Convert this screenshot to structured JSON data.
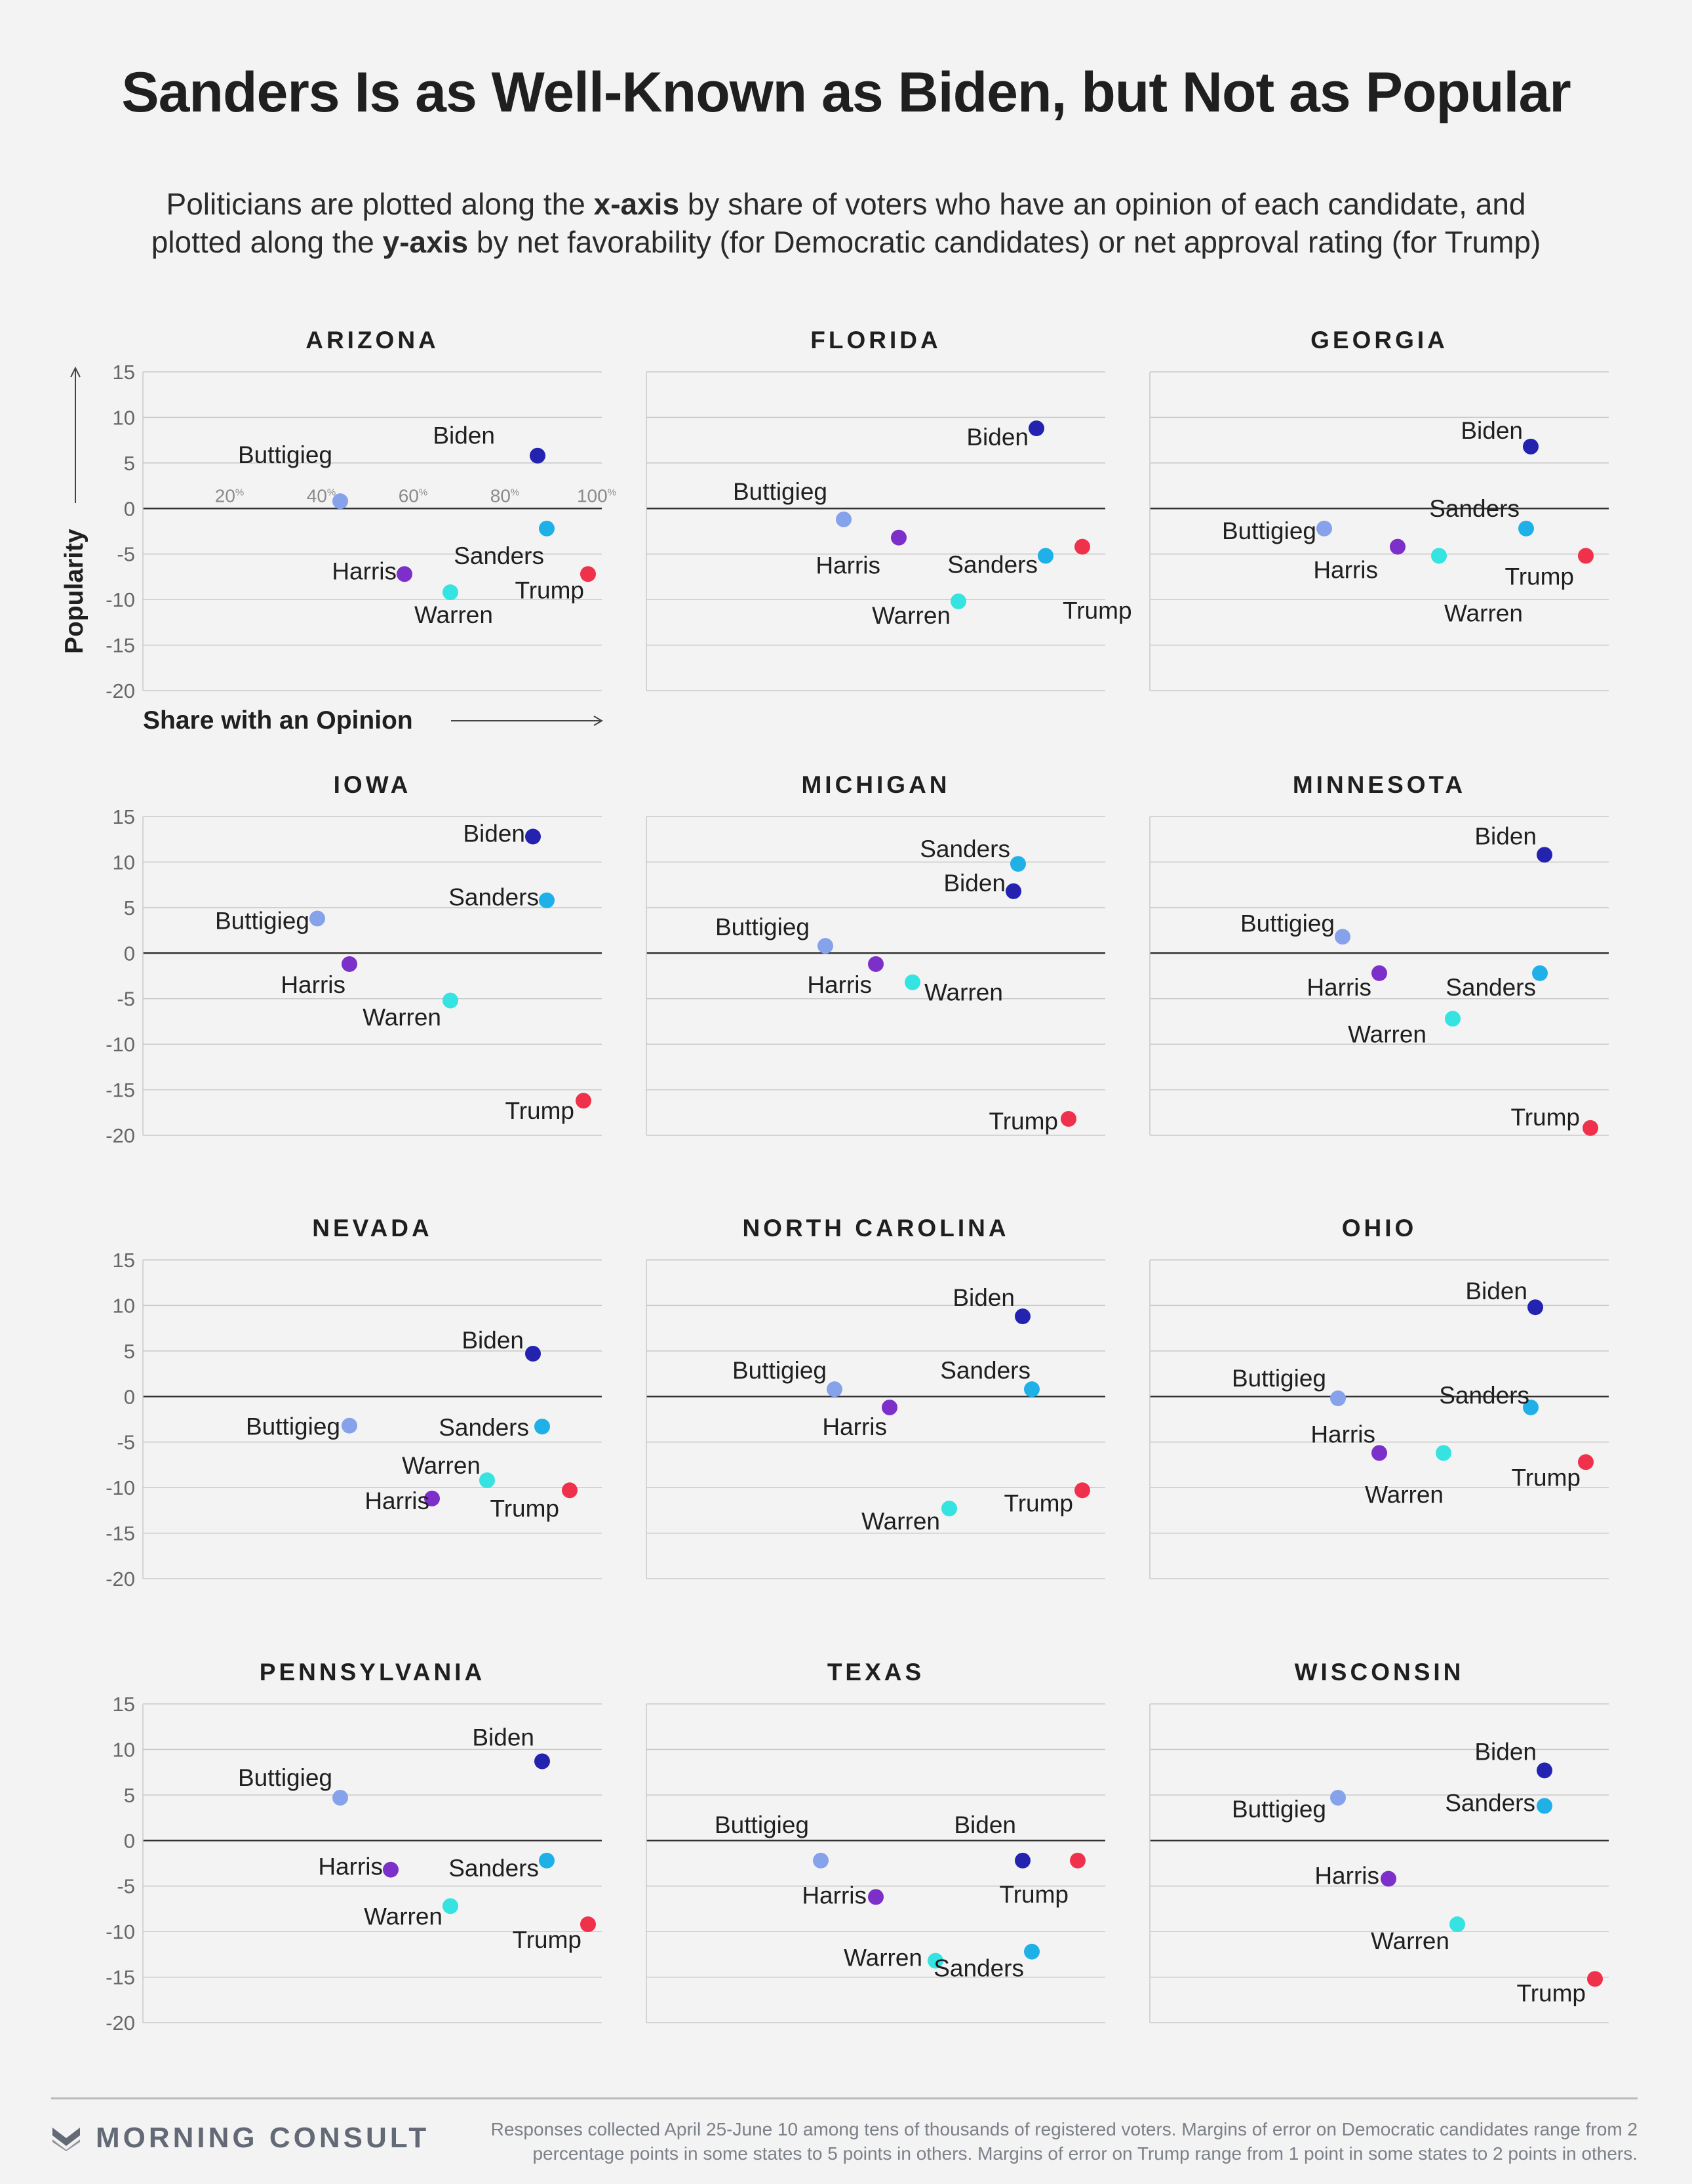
{
  "title": "Sanders Is as Well-Known as Biden, but Not as Popular",
  "subtitle": {
    "line1_pre": "Politicians are plotted along the ",
    "line1_bold": "x-axis",
    "line1_post": " by share of voters who have an opinion of each candidate, and",
    "line2_pre": "plotted along the ",
    "line2_bold": "y-axis",
    "line2_post": " by net favorability (for Democratic candidates) or net approval rating (for Trump)"
  },
  "axis": {
    "ylabel": "Popularity",
    "xlabel": "Share with an Opinion",
    "yticks": [
      "15",
      "10",
      "5",
      "0",
      "-5",
      "-10",
      "-15",
      "-20"
    ],
    "xtick_labels": [
      "20",
      "40",
      "60",
      "80",
      "100"
    ],
    "xtick_unit": "%"
  },
  "colors": {
    "Biden": "#2323b0",
    "Sanders": "#1fb0e8",
    "Buttigieg": "#85a2ea",
    "Harris": "#7d2fc9",
    "Warren": "#35e3e0",
    "Trump": "#f0314b",
    "label": "#1f1f1f",
    "grid": "#c9c9c9",
    "zero": "#333333",
    "tick": "#666666"
  },
  "chart_data": [
    {
      "type": "scatter",
      "title": "ARIZONA",
      "xlim": [
        0,
        100
      ],
      "ylim": [
        -20,
        15
      ],
      "points": [
        {
          "name": "Biden",
          "x": 86,
          "y": 5.8
        },
        {
          "name": "Buttigieg",
          "x": 43,
          "y": 0.8
        },
        {
          "name": "Sanders",
          "x": 88,
          "y": -2.2
        },
        {
          "name": "Harris",
          "x": 57,
          "y": -7.2
        },
        {
          "name": "Warren",
          "x": 67,
          "y": -9.2
        },
        {
          "name": "Trump",
          "x": 97,
          "y": -7.2
        }
      ]
    },
    {
      "type": "scatter",
      "title": "FLORIDA",
      "xlim": [
        0,
        100
      ],
      "ylim": [
        -20,
        15
      ],
      "points": [
        {
          "name": "Biden",
          "x": 85,
          "y": 8.8
        },
        {
          "name": "Buttigieg",
          "x": 43,
          "y": -1.2
        },
        {
          "name": "Harris",
          "x": 55,
          "y": -3.2
        },
        {
          "name": "Sanders",
          "x": 87,
          "y": -5.2
        },
        {
          "name": "Warren",
          "x": 68,
          "y": -10.2
        },
        {
          "name": "Trump",
          "x": 95,
          "y": -4.2
        }
      ]
    },
    {
      "type": "scatter",
      "title": "GEORGIA",
      "xlim": [
        0,
        100
      ],
      "ylim": [
        -20,
        15
      ],
      "points": [
        {
          "name": "Biden",
          "x": 83,
          "y": 6.8
        },
        {
          "name": "Sanders",
          "x": 82,
          "y": -2.2
        },
        {
          "name": "Buttigieg",
          "x": 38,
          "y": -2.2
        },
        {
          "name": "Harris",
          "x": 54,
          "y": -4.2
        },
        {
          "name": "Warren",
          "x": 63,
          "y": -5.2
        },
        {
          "name": "Trump",
          "x": 95,
          "y": -5.2
        }
      ]
    },
    {
      "type": "scatter",
      "title": "IOWA",
      "xlim": [
        0,
        100
      ],
      "ylim": [
        -20,
        15
      ],
      "points": [
        {
          "name": "Biden",
          "x": 85,
          "y": 12.8
        },
        {
          "name": "Sanders",
          "x": 88,
          "y": 5.8
        },
        {
          "name": "Buttigieg",
          "x": 38,
          "y": 3.8
        },
        {
          "name": "Harris",
          "x": 45,
          "y": -1.2
        },
        {
          "name": "Warren",
          "x": 67,
          "y": -5.2
        },
        {
          "name": "Trump",
          "x": 96,
          "y": -16.2
        }
      ]
    },
    {
      "type": "scatter",
      "title": "MICHIGAN",
      "xlim": [
        0,
        100
      ],
      "ylim": [
        -20,
        15
      ],
      "points": [
        {
          "name": "Sanders",
          "x": 81,
          "y": 9.8
        },
        {
          "name": "Biden",
          "x": 80,
          "y": 6.8
        },
        {
          "name": "Buttigieg",
          "x": 39,
          "y": 0.8
        },
        {
          "name": "Harris",
          "x": 50,
          "y": -1.2
        },
        {
          "name": "Warren",
          "x": 58,
          "y": -3.2
        },
        {
          "name": "Trump",
          "x": 92,
          "y": -18.2
        }
      ]
    },
    {
      "type": "scatter",
      "title": "MINNESOTA",
      "xlim": [
        0,
        100
      ],
      "ylim": [
        -20,
        15
      ],
      "points": [
        {
          "name": "Biden",
          "x": 86,
          "y": 10.8
        },
        {
          "name": "Buttigieg",
          "x": 42,
          "y": 1.8
        },
        {
          "name": "Harris",
          "x": 50,
          "y": -2.2
        },
        {
          "name": "Sanders",
          "x": 85,
          "y": -2.2
        },
        {
          "name": "Warren",
          "x": 66,
          "y": -7.2
        },
        {
          "name": "Trump",
          "x": 96,
          "y": -19.2
        }
      ]
    },
    {
      "type": "scatter",
      "title": "NEVADA",
      "xlim": [
        0,
        100
      ],
      "ylim": [
        -20,
        15
      ],
      "points": [
        {
          "name": "Biden",
          "x": 85,
          "y": 4.7
        },
        {
          "name": "Buttigieg",
          "x": 45,
          "y": -3.2
        },
        {
          "name": "Sanders",
          "x": 87,
          "y": -3.3
        },
        {
          "name": "Warren",
          "x": 75,
          "y": -9.2
        },
        {
          "name": "Harris",
          "x": 63,
          "y": -11.2
        },
        {
          "name": "Trump",
          "x": 93,
          "y": -10.3
        }
      ]
    },
    {
      "type": "scatter",
      "title": "NORTH CAROLINA",
      "xlim": [
        0,
        100
      ],
      "ylim": [
        -20,
        15
      ],
      "points": [
        {
          "name": "Biden",
          "x": 82,
          "y": 8.8
        },
        {
          "name": "Buttigieg",
          "x": 41,
          "y": 0.8
        },
        {
          "name": "Sanders",
          "x": 84,
          "y": 0.8
        },
        {
          "name": "Harris",
          "x": 53,
          "y": -1.2
        },
        {
          "name": "Warren",
          "x": 66,
          "y": -12.3
        },
        {
          "name": "Trump",
          "x": 95,
          "y": -10.3
        }
      ]
    },
    {
      "type": "scatter",
      "title": "OHIO",
      "xlim": [
        0,
        100
      ],
      "ylim": [
        -20,
        15
      ],
      "points": [
        {
          "name": "Biden",
          "x": 84,
          "y": 9.8
        },
        {
          "name": "Buttigieg",
          "x": 41,
          "y": -0.2
        },
        {
          "name": "Sanders",
          "x": 83,
          "y": -1.2
        },
        {
          "name": "Harris",
          "x": 50,
          "y": -6.2
        },
        {
          "name": "Warren",
          "x": 64,
          "y": -6.2
        },
        {
          "name": "Trump",
          "x": 95,
          "y": -7.2
        }
      ]
    },
    {
      "type": "scatter",
      "title": "PENNSYLVANIA",
      "xlim": [
        0,
        100
      ],
      "ylim": [
        -20,
        15
      ],
      "points": [
        {
          "name": "Biden",
          "x": 87,
          "y": 8.7
        },
        {
          "name": "Buttigieg",
          "x": 43,
          "y": 4.7
        },
        {
          "name": "Harris",
          "x": 54,
          "y": -3.2
        },
        {
          "name": "Sanders",
          "x": 88,
          "y": -2.2
        },
        {
          "name": "Warren",
          "x": 67,
          "y": -7.2
        },
        {
          "name": "Trump",
          "x": 97,
          "y": -9.2
        }
      ]
    },
    {
      "type": "scatter",
      "title": "TEXAS",
      "xlim": [
        0,
        100
      ],
      "ylim": [
        -20,
        15
      ],
      "points": [
        {
          "name": "Buttigieg",
          "x": 38,
          "y": -2.2
        },
        {
          "name": "Biden",
          "x": 82,
          "y": -2.2
        },
        {
          "name": "Trump",
          "x": 94,
          "y": -2.2
        },
        {
          "name": "Harris",
          "x": 50,
          "y": -6.2
        },
        {
          "name": "Warren",
          "x": 63,
          "y": -13.2
        },
        {
          "name": "Sanders",
          "x": 84,
          "y": -12.2
        }
      ]
    },
    {
      "type": "scatter",
      "title": "WISCONSIN",
      "xlim": [
        0,
        100
      ],
      "ylim": [
        -20,
        15
      ],
      "points": [
        {
          "name": "Biden",
          "x": 86,
          "y": 7.7
        },
        {
          "name": "Buttigieg",
          "x": 41,
          "y": 4.7
        },
        {
          "name": "Sanders",
          "x": 86,
          "y": 3.8
        },
        {
          "name": "Harris",
          "x": 52,
          "y": -4.2
        },
        {
          "name": "Warren",
          "x": 67,
          "y": -9.2
        },
        {
          "name": "Trump",
          "x": 97,
          "y": -15.2
        }
      ]
    }
  ],
  "footer": {
    "brand": "MORNING CONSULT",
    "logo_icon": "morning-consult-chevron-icon",
    "note_line1": "Responses collected April 25-June 10 among tens of thousands of registered voters. Margins of error on Democratic candidates range from 2",
    "note_line2": "percentage points in some states to 5 points in others. Margins of error on Trump range from 1 point in some states to 2 points in others."
  }
}
